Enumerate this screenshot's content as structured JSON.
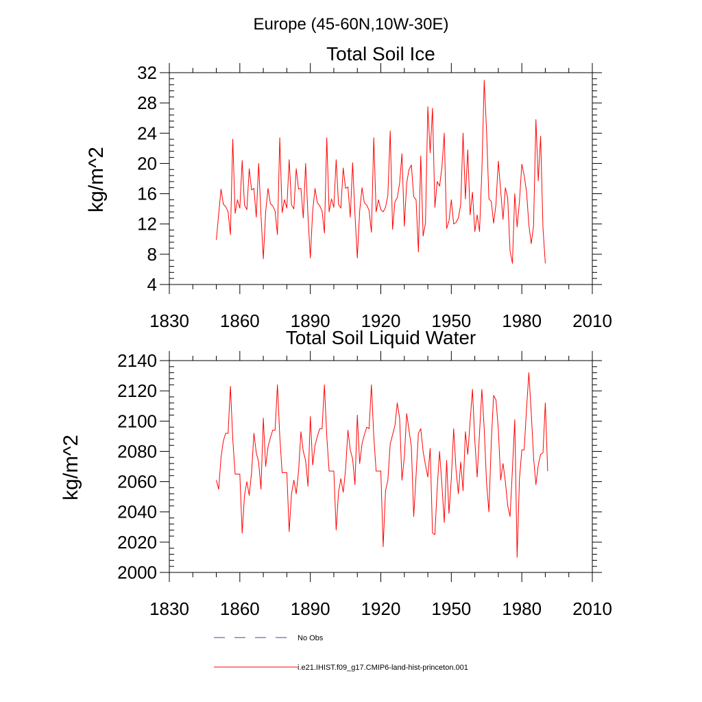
{
  "page_title": "Europe (45-60N,10W-30E)",
  "legend": {
    "entries": [
      {
        "label": "No Obs",
        "color": "#36489c",
        "style": "dashed"
      },
      {
        "label": "i.e21.IHIST.f09_g17.CMIP6-land-hist-princeton.001",
        "color": "#ff0000",
        "style": "solid"
      }
    ]
  },
  "chart_data": [
    {
      "type": "line",
      "title": "Total Soil Ice",
      "xlabel": "",
      "ylabel": "kg/m^2",
      "xlim": [
        1830,
        2010
      ],
      "ylim": [
        4,
        32
      ],
      "xticks": [
        1830,
        1860,
        1890,
        1920,
        1950,
        1980,
        2010
      ],
      "yticks": [
        4,
        8,
        12,
        16,
        20,
        24,
        28,
        32
      ],
      "grid": false,
      "series": [
        {
          "name": "i.e21.IHIST.f09_g17.CMIP6-land-hist-princeton.001",
          "color": "#ff0000",
          "x_start": 1850,
          "x_step": 1,
          "values": [
            9.9,
            13.3,
            16.6,
            14.6,
            14.3,
            13.6,
            10.6,
            23.2,
            13.4,
            15.2,
            14.1,
            20.4,
            14.5,
            13.9,
            19.3,
            16.5,
            16.7,
            12.9,
            20.0,
            13.2,
            7.4,
            13.6,
            16.7,
            14.7,
            14.4,
            13.7,
            10.6,
            23.4,
            13.5,
            15.2,
            14.1,
            20.5,
            14.5,
            14.0,
            19.3,
            16.6,
            16.7,
            12.8,
            20.0,
            13.1,
            7.5,
            13.7,
            16.7,
            14.8,
            14.4,
            13.7,
            10.8,
            23.4,
            13.6,
            15.3,
            14.2,
            20.5,
            14.6,
            14.1,
            19.4,
            16.7,
            16.9,
            12.9,
            20.1,
            13.3,
            7.5,
            13.7,
            16.8,
            14.8,
            14.5,
            13.8,
            10.9,
            23.4,
            13.6,
            15.2,
            13.9,
            13.6,
            14.2,
            15.8,
            24.3,
            11.3,
            14.9,
            15.5,
            17.4,
            21.3,
            11.7,
            17.4,
            19.2,
            19.8,
            15.6,
            15.2,
            8.3,
            21.0,
            10.4,
            12.1,
            27.5,
            21.4,
            27.3,
            14.2,
            17.6,
            17.0,
            19.5,
            24.0,
            11.4,
            12.4,
            15.2,
            12.0,
            12.2,
            12.8,
            14.6,
            24.0,
            15.3,
            21.8,
            13.2,
            16.2,
            11.0,
            13.2,
            11.0,
            19.0,
            31.0,
            24.3,
            15.3,
            15.0,
            12.1,
            14.6,
            20.3,
            16.4,
            12.6,
            16.8,
            15.4,
            8.4,
            6.8,
            16.0,
            11.6,
            15.0,
            19.9,
            18.4,
            16.3,
            11.9,
            9.4,
            11.8,
            25.8,
            17.7,
            23.6,
            11.5,
            6.8
          ]
        }
      ]
    },
    {
      "type": "line",
      "title": "Total Soil Liquid Water",
      "xlabel": "",
      "ylabel": "kg/m^2",
      "xlim": [
        1830,
        2010
      ],
      "ylim": [
        2000,
        2140
      ],
      "xticks": [
        1830,
        1860,
        1890,
        1920,
        1950,
        1980,
        2010
      ],
      "yticks": [
        2000,
        2020,
        2040,
        2060,
        2080,
        2100,
        2120,
        2140
      ],
      "grid": false,
      "series": [
        {
          "name": "i.e21.IHIST.f09_g17.CMIP6-land-hist-princeton.001",
          "color": "#ff0000",
          "x_start": 1850,
          "x_step": 1,
          "values": [
            2061,
            2055,
            2076,
            2087,
            2092,
            2092,
            2123,
            2088,
            2065,
            2065,
            2065,
            2026,
            2051,
            2060,
            2051,
            2066,
            2092,
            2079,
            2073,
            2055,
            2102,
            2070,
            2083,
            2089,
            2094,
            2094,
            2124,
            2090,
            2066,
            2066,
            2066,
            2027,
            2052,
            2061,
            2052,
            2067,
            2093,
            2080,
            2074,
            2057,
            2103,
            2071,
            2084,
            2090,
            2095,
            2095,
            2124,
            2090,
            2067,
            2067,
            2067,
            2028,
            2053,
            2062,
            2053,
            2068,
            2094,
            2081,
            2075,
            2058,
            2104,
            2072,
            2085,
            2091,
            2096,
            2095,
            2124,
            2090,
            2067,
            2067,
            2067,
            2017,
            2054,
            2061,
            2085,
            2091,
            2097,
            2112,
            2102,
            2061,
            2076,
            2105,
            2094,
            2083,
            2037,
            2064,
            2092,
            2095,
            2080,
            2071,
            2063,
            2082,
            2026,
            2025,
            2056,
            2080,
            2058,
            2033,
            2074,
            2039,
            2062,
            2095,
            2068,
            2052,
            2073,
            2054,
            2093,
            2078,
            2100,
            2121,
            2087,
            2063,
            2092,
            2121,
            2095,
            2059,
            2040,
            2086,
            2117,
            2114,
            2095,
            2061,
            2072,
            2060,
            2044,
            2037,
            2068,
            2101,
            2010,
            2062,
            2081,
            2081,
            2108,
            2132,
            2106,
            2076,
            2058,
            2071,
            2078,
            2079,
            2112,
            2067
          ]
        }
      ]
    }
  ]
}
